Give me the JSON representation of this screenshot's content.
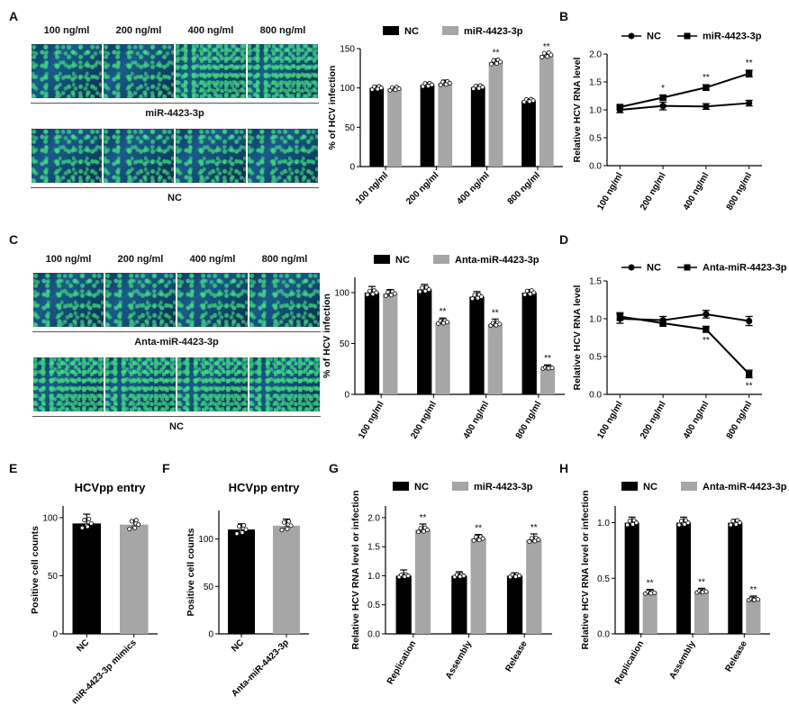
{
  "panel_labels": {
    "A": "A",
    "B": "B",
    "C": "C",
    "D": "D",
    "E": "E",
    "F": "F",
    "G": "G",
    "H": "H"
  },
  "micro_A": {
    "columns": [
      "100 ng/ml",
      "200 ng/ml",
      "400 ng/ml",
      "800 ng/ml"
    ],
    "row1_label": "miR-4423-3p",
    "row2_label": "NC"
  },
  "micro_C": {
    "columns": [
      "100 ng/ml",
      "200 ng/ml",
      "400 ng/ml",
      "800 ng/ml"
    ],
    "row1_label": "Anta-miR-4423-3p",
    "row2_label": "NC"
  },
  "colors": {
    "black": "#000000",
    "gray": "#a6a6a6"
  },
  "chart_data": [
    {
      "id": "A",
      "type": "bar",
      "categories": [
        "100 ng/ml",
        "200 ng/ml",
        "400 ng/ml",
        "800 ng/ml"
      ],
      "series": [
        {
          "name": "NC",
          "values": [
            100,
            104,
            101,
            84
          ],
          "err": [
            3,
            3,
            3,
            2
          ],
          "color": "#000000"
        },
        {
          "name": "miR-4423-3p",
          "values": [
            99,
            106,
            133,
            142
          ],
          "err": [
            2,
            4,
            4,
            2
          ],
          "color": "#a6a6a6"
        }
      ],
      "ylabel": "% of HCV infection",
      "ylim": [
        0,
        150
      ],
      "yticks": [
        0,
        50,
        100,
        150
      ],
      "annotations": [
        {
          "cat": 2,
          "series": 1,
          "text": "**"
        },
        {
          "cat": 3,
          "series": 1,
          "text": "**"
        }
      ]
    },
    {
      "id": "B",
      "type": "line",
      "categories": [
        "100 ng/ml",
        "200 ng/ml",
        "400 ng/ml",
        "800 ng/ml"
      ],
      "series": [
        {
          "name": "NC",
          "values": [
            1.0,
            1.07,
            1.06,
            1.12
          ],
          "err": [
            0.05,
            0.07,
            0.05,
            0.05
          ],
          "marker": "circle"
        },
        {
          "name": "miR-4423-3p",
          "values": [
            1.05,
            1.22,
            1.4,
            1.65
          ],
          "err": [
            0.04,
            0.04,
            0.05,
            0.06
          ],
          "marker": "square"
        }
      ],
      "ylabel": "Relative HCV RNA level",
      "ylim": [
        0,
        2.0
      ],
      "yticks": [
        0.0,
        0.5,
        1.0,
        1.5,
        2.0
      ],
      "annotations": [
        {
          "cat": 1,
          "text": "*"
        },
        {
          "cat": 2,
          "text": "**"
        },
        {
          "cat": 3,
          "text": "**"
        }
      ]
    },
    {
      "id": "C",
      "type": "bar",
      "categories": [
        "100 ng/ml",
        "200 ng/ml",
        "400 ng/ml",
        "800 ng/ml"
      ],
      "series": [
        {
          "name": "NC",
          "values": [
            100,
            103,
            96,
            100
          ],
          "err": [
            6,
            5,
            5,
            3
          ],
          "color": "#000000"
        },
        {
          "name": "Anta-miR-4423-3p",
          "values": [
            99,
            71,
            69,
            26
          ],
          "err": [
            4,
            4,
            5,
            3
          ],
          "color": "#a6a6a6"
        }
      ],
      "ylabel": "% of HCV infection",
      "ylim": [
        0,
        115
      ],
      "yticks": [
        0,
        50,
        100
      ],
      "annotations": [
        {
          "cat": 1,
          "series": 1,
          "text": "**"
        },
        {
          "cat": 2,
          "series": 1,
          "text": "**"
        },
        {
          "cat": 3,
          "series": 1,
          "text": "**"
        }
      ]
    },
    {
      "id": "D",
      "type": "line",
      "categories": [
        "100 ng/ml",
        "200 ng/ml",
        "400 ng/ml",
        "800 ng/ml"
      ],
      "series": [
        {
          "name": "NC",
          "values": [
            1.0,
            0.98,
            1.06,
            0.97
          ],
          "err": [
            0.06,
            0.05,
            0.05,
            0.06
          ],
          "marker": "circle"
        },
        {
          "name": "Anta-miR-4423-3p",
          "values": [
            1.03,
            0.94,
            0.86,
            0.27
          ],
          "err": [
            0.05,
            0.04,
            0.04,
            0.05
          ],
          "marker": "square"
        }
      ],
      "ylabel": "Relative HCV RNA level",
      "ylim": [
        0,
        1.5
      ],
      "yticks": [
        0.0,
        0.5,
        1.0,
        1.5
      ],
      "annotations": [
        {
          "cat": 2,
          "text": "**",
          "below": true
        },
        {
          "cat": 3,
          "text": "**",
          "below": true
        }
      ]
    },
    {
      "id": "E",
      "type": "bar",
      "title": "HCVpp entry",
      "categories": [
        "NC",
        "miR-4423-3p mimics"
      ],
      "values": [
        95,
        94
      ],
      "err": [
        8,
        4
      ],
      "colors": [
        "#000000",
        "#a6a6a6"
      ],
      "ylabel": "Positive cell counts",
      "ylim": [
        0,
        110
      ],
      "yticks": [
        0,
        50,
        100
      ]
    },
    {
      "id": "F",
      "type": "bar",
      "title": "HCVpp entry",
      "categories": [
        "NC",
        "Anta-miR-4423-3p"
      ],
      "values": [
        110,
        114
      ],
      "err": [
        6,
        7
      ],
      "colors": [
        "#000000",
        "#a6a6a6"
      ],
      "ylabel": "Positive cell counts",
      "ylim": [
        0,
        130
      ],
      "yticks": [
        0,
        50,
        100
      ]
    },
    {
      "id": "G",
      "type": "bar",
      "categories": [
        "Replication",
        "Assembly",
        "Release"
      ],
      "series": [
        {
          "name": "NC",
          "values": [
            1.0,
            1.0,
            1.0
          ],
          "err": [
            0.1,
            0.07,
            0.05
          ],
          "color": "#000000"
        },
        {
          "name": "miR-4423-3p",
          "values": [
            1.79,
            1.64,
            1.62
          ],
          "err": [
            0.1,
            0.07,
            0.1
          ],
          "color": "#a6a6a6"
        }
      ],
      "ylabel": "Relative HCV RNA level or infection",
      "ylim": [
        0,
        2.2
      ],
      "yticks": [
        0.0,
        0.5,
        1.0,
        1.5,
        2.0
      ],
      "annotations": [
        {
          "cat": 0,
          "series": 1,
          "text": "**"
        },
        {
          "cat": 1,
          "series": 1,
          "text": "**"
        },
        {
          "cat": 2,
          "series": 1,
          "text": "**"
        }
      ]
    },
    {
      "id": "H",
      "type": "bar",
      "categories": [
        "Replication",
        "Assembly",
        "Release"
      ],
      "series": [
        {
          "name": "NC",
          "values": [
            1.0,
            1.0,
            1.0
          ],
          "err": [
            0.05,
            0.05,
            0.03
          ],
          "color": "#000000"
        },
        {
          "name": "Anta-miR-4423-3p",
          "values": [
            0.37,
            0.38,
            0.31
          ],
          "err": [
            0.03,
            0.03,
            0.03
          ],
          "color": "#a6a6a6"
        }
      ],
      "ylabel": "Relative HCV RNA level or infection",
      "ylim": [
        0,
        1.15
      ],
      "yticks": [
        0.0,
        0.5,
        1.0
      ],
      "annotations": [
        {
          "cat": 0,
          "series": 1,
          "text": "**"
        },
        {
          "cat": 1,
          "series": 1,
          "text": "**"
        },
        {
          "cat": 2,
          "series": 1,
          "text": "**"
        }
      ]
    }
  ]
}
